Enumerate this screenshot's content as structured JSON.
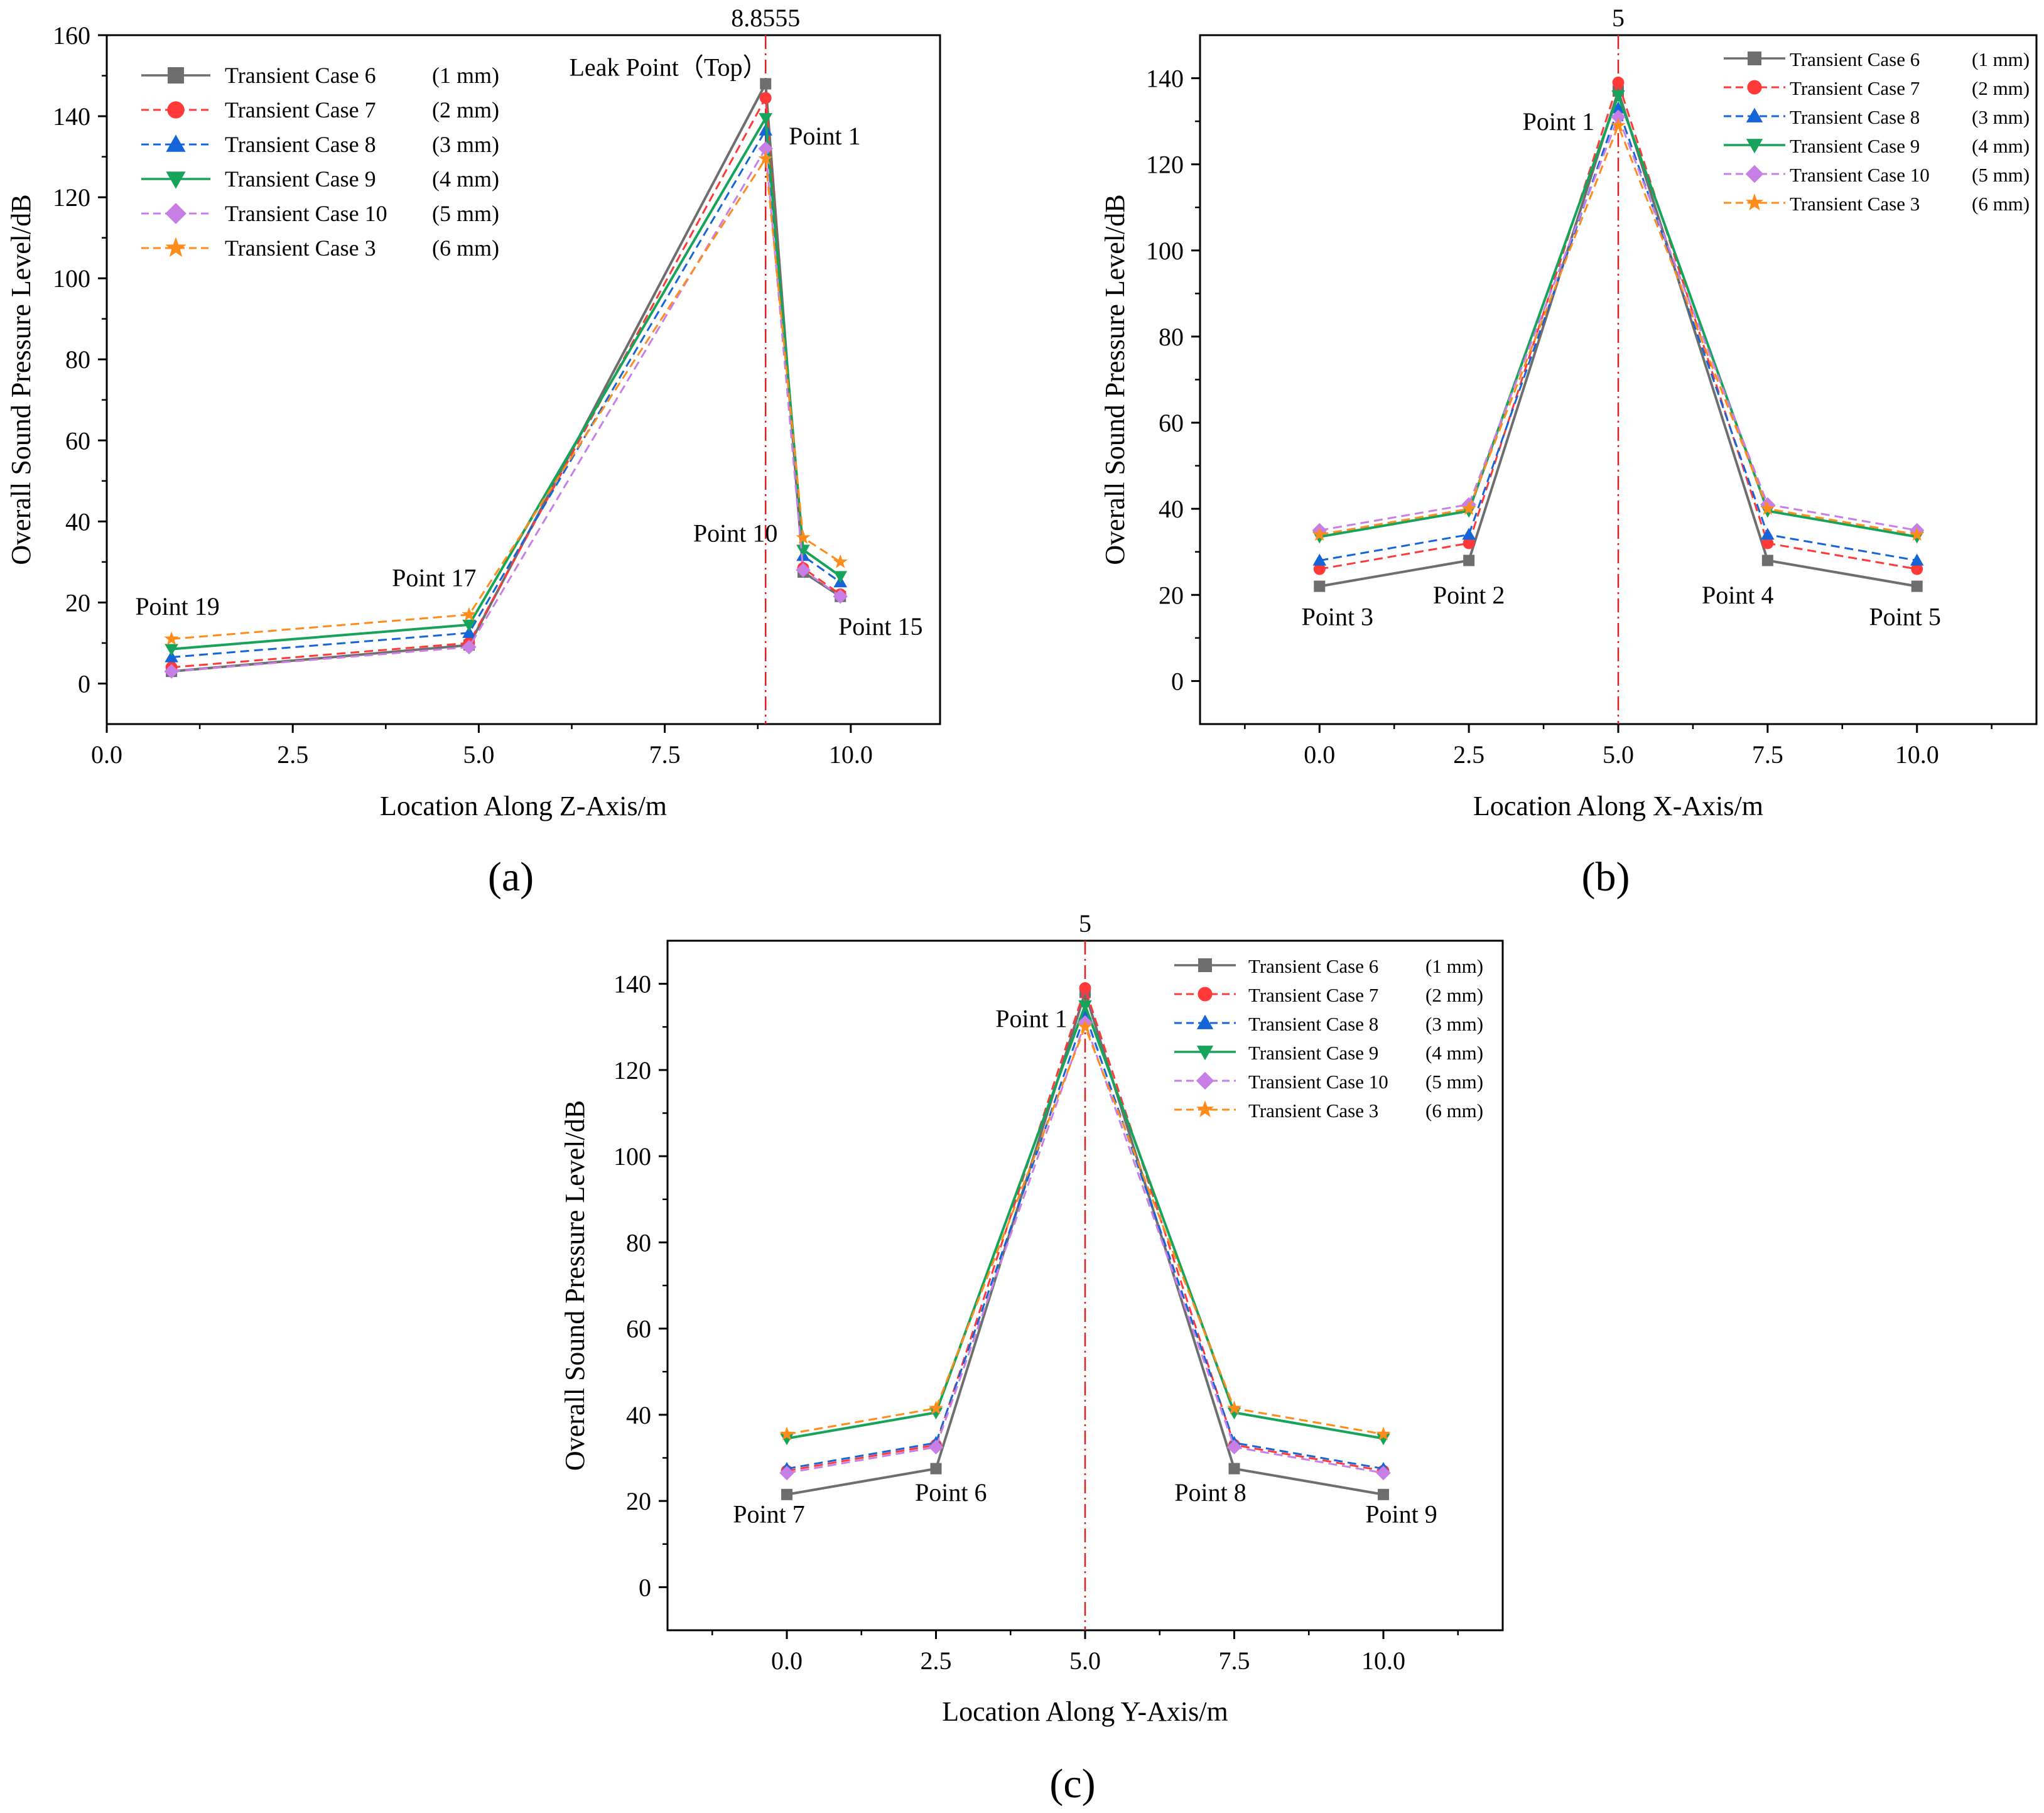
{
  "chart_data": [
    {
      "type": "line",
      "panel_label": "(a)",
      "xlabel": "Location Along Z-Axis/m",
      "ylabel": "Overall Sound Pressure Level/dB",
      "xlim": [
        0,
        11.2
      ],
      "ylim": [
        -10,
        160
      ],
      "xticks": [
        0.0,
        2.5,
        5.0,
        7.5,
        10.0
      ],
      "xtick_labels": [
        "0.0",
        "2.5",
        "5.0",
        "7.5",
        "10.0"
      ],
      "yticks": [
        0,
        20,
        40,
        60,
        80,
        100,
        120,
        140,
        160
      ],
      "ytick_labels": [
        "0",
        "20",
        "40",
        "60",
        "80",
        "100",
        "120",
        "140",
        "160"
      ],
      "vline": {
        "x": 8.8555,
        "label": "8.8555"
      },
      "x": [
        0.87,
        4.87,
        8.8555,
        9.36,
        9.86
      ],
      "point_labels": [
        {
          "text": "Point 19",
          "x": 0.95,
          "y": 17
        },
        {
          "text": "Point 17",
          "x": 4.4,
          "y": 24
        },
        {
          "text": "Leak Point（Top）",
          "x": 7.55,
          "y": 150
        },
        {
          "text": "Point 1",
          "x": 9.65,
          "y": 133
        },
        {
          "text": "Point 10",
          "x": 8.45,
          "y": 35
        },
        {
          "text": "Point 15",
          "x": 10.4,
          "y": 12
        }
      ],
      "series": [
        {
          "name": "Transient Case 6",
          "size": "(1 mm)",
          "color": "#6e6e6e",
          "dash": "solid",
          "marker": "square",
          "values": [
            3,
            9.5,
            148,
            27.5,
            21.5
          ]
        },
        {
          "name": "Transient Case 7",
          "size": "(2 mm)",
          "color": "#ff3838",
          "dash": "dash",
          "marker": "circle",
          "values": [
            4,
            10,
            144.5,
            28.5,
            22
          ]
        },
        {
          "name": "Transient Case 8",
          "size": "(3 mm)",
          "color": "#1565d8",
          "dash": "dash",
          "marker": "triangle-up",
          "values": [
            6.5,
            12.5,
            136.5,
            31.5,
            25
          ]
        },
        {
          "name": "Transient Case 9",
          "size": "(4 mm)",
          "color": "#16a35a",
          "dash": "solid",
          "marker": "triangle-down",
          "values": [
            8.5,
            14.5,
            139.5,
            33,
            26.5
          ]
        },
        {
          "name": "Transient Case 10",
          "size": "(5 mm)",
          "color": "#c77fe6",
          "dash": "dash",
          "marker": "diamond",
          "values": [
            3,
            9,
            132,
            28,
            21.5
          ]
        },
        {
          "name": "Transient Case 3",
          "size": "(6 mm)",
          "color": "#ff8c1a",
          "dash": "dash",
          "marker": "star",
          "values": [
            11,
            17,
            129.5,
            36,
            30
          ]
        }
      ]
    },
    {
      "type": "line",
      "panel_label": "(b)",
      "xlabel": "Location Along X-Axis/m",
      "ylabel": "Overall Sound Pressure Level/dB",
      "xlim": [
        -2,
        12
      ],
      "ylim": [
        -10,
        150
      ],
      "xticks": [
        0.0,
        2.5,
        5.0,
        7.5,
        10.0
      ],
      "xtick_labels": [
        "0.0",
        "2.5",
        "5.0",
        "7.5",
        "10.0"
      ],
      "yticks": [
        0,
        20,
        40,
        60,
        80,
        100,
        120,
        140
      ],
      "ytick_labels": [
        "0",
        "20",
        "40",
        "60",
        "80",
        "100",
        "120",
        "140"
      ],
      "vline": {
        "x": 5,
        "label": "5"
      },
      "x": [
        0,
        2.5,
        5,
        7.5,
        10
      ],
      "point_labels": [
        {
          "text": "Point 3",
          "x": 0.3,
          "y": 13
        },
        {
          "text": "Point 2",
          "x": 2.5,
          "y": 18
        },
        {
          "text": "Point 1",
          "x": 4.0,
          "y": 128
        },
        {
          "text": "Point 4",
          "x": 7.0,
          "y": 18
        },
        {
          "text": "Point 5",
          "x": 9.8,
          "y": 13
        }
      ],
      "series": [
        {
          "name": "Transient Case 6",
          "size": "(1 mm)",
          "color": "#6e6e6e",
          "dash": "solid",
          "marker": "square",
          "values": [
            22,
            28,
            137,
            28,
            22
          ]
        },
        {
          "name": "Transient Case 7",
          "size": "(2 mm)",
          "color": "#ff3838",
          "dash": "dash",
          "marker": "circle",
          "values": [
            26,
            32,
            139,
            32,
            26
          ]
        },
        {
          "name": "Transient Case 8",
          "size": "(3 mm)",
          "color": "#1565d8",
          "dash": "dash",
          "marker": "triangle-up",
          "values": [
            28,
            34,
            133,
            34,
            28
          ]
        },
        {
          "name": "Transient Case 9",
          "size": "(4 mm)",
          "color": "#16a35a",
          "dash": "solid",
          "marker": "triangle-down",
          "values": [
            33.5,
            39.5,
            136,
            39.5,
            33.5
          ]
        },
        {
          "name": "Transient Case 10",
          "size": "(5 mm)",
          "color": "#c77fe6",
          "dash": "dash",
          "marker": "diamond",
          "values": [
            35,
            41,
            131,
            41,
            35
          ]
        },
        {
          "name": "Transient Case 3",
          "size": "(6 mm)",
          "color": "#ff8c1a",
          "dash": "dash",
          "marker": "star",
          "values": [
            34,
            40,
            129,
            40,
            34
          ]
        }
      ]
    },
    {
      "type": "line",
      "panel_label": "(c)",
      "xlabel": "Location Along Y-Axis/m",
      "ylabel": "Overall Sound Pressure Level/dB",
      "xlim": [
        -2,
        12
      ],
      "ylim": [
        -10,
        150
      ],
      "xticks": [
        0.0,
        2.5,
        5.0,
        7.5,
        10.0
      ],
      "xtick_labels": [
        "0.0",
        "2.5",
        "5.0",
        "7.5",
        "10.0"
      ],
      "yticks": [
        0,
        20,
        40,
        60,
        80,
        100,
        120,
        140
      ],
      "ytick_labels": [
        "0",
        "20",
        "40",
        "60",
        "80",
        "100",
        "120",
        "140"
      ],
      "vline": {
        "x": 5,
        "label": "5"
      },
      "x": [
        0,
        2.5,
        5,
        7.5,
        10
      ],
      "point_labels": [
        {
          "text": "Point 7",
          "x": -0.3,
          "y": 15
        },
        {
          "text": "Point 6",
          "x": 2.75,
          "y": 20
        },
        {
          "text": "Point 1",
          "x": 4.1,
          "y": 130
        },
        {
          "text": "Point 8",
          "x": 7.1,
          "y": 20
        },
        {
          "text": "Point 9",
          "x": 10.3,
          "y": 15
        }
      ],
      "series": [
        {
          "name": "Transient Case 6",
          "size": "(1 mm)",
          "color": "#6e6e6e",
          "dash": "solid",
          "marker": "square",
          "values": [
            21.5,
            27.5,
            138,
            27.5,
            21.5
          ]
        },
        {
          "name": "Transient Case 7",
          "size": "(2 mm)",
          "color": "#ff3838",
          "dash": "dash",
          "marker": "circle",
          "values": [
            27,
            33,
            139,
            33,
            27
          ]
        },
        {
          "name": "Transient Case 8",
          "size": "(3 mm)",
          "color": "#1565d8",
          "dash": "dash",
          "marker": "triangle-up",
          "values": [
            27.5,
            33.5,
            133,
            33.5,
            27.5
          ]
        },
        {
          "name": "Transient Case 9",
          "size": "(4 mm)",
          "color": "#16a35a",
          "dash": "solid",
          "marker": "triangle-down",
          "values": [
            34.5,
            40.5,
            135,
            40.5,
            34.5
          ]
        },
        {
          "name": "Transient Case 10",
          "size": "(5 mm)",
          "color": "#c77fe6",
          "dash": "dash",
          "marker": "diamond",
          "values": [
            26.5,
            32.5,
            131,
            32.5,
            26.5
          ]
        },
        {
          "name": "Transient Case 3",
          "size": "(6 mm)",
          "color": "#ff8c1a",
          "dash": "dash",
          "marker": "star",
          "values": [
            35.5,
            41.5,
            130,
            41.5,
            35.5
          ]
        }
      ]
    }
  ]
}
